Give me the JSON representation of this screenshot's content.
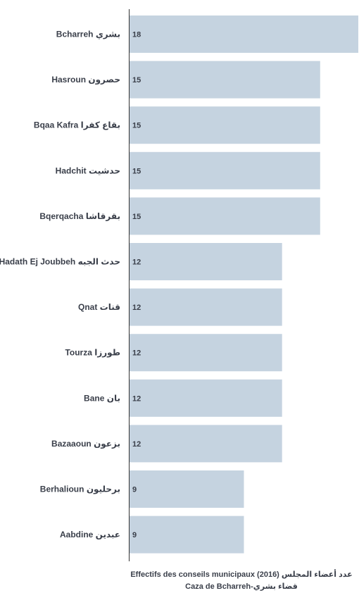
{
  "chart_data": {
    "type": "bar",
    "orientation": "horizontal",
    "categories": [
      "Bcharreh بشري",
      "Hasroun حصرون",
      "Bqaa Kafra بقاع كفرا",
      "Hadchit حدشيت",
      "Bqerqacha بقرقاشا",
      "Hadath Ej Joubbeh حدث الجبه",
      "Qnat قنات",
      "Tourza طورزا",
      "Bane بان",
      "Bazaaoun بزعون",
      "Berhalioun برحليون",
      "Aabdine عبدين"
    ],
    "values": [
      18,
      15,
      15,
      15,
      15,
      12,
      12,
      12,
      12,
      12,
      9,
      9
    ],
    "xlim": [
      0,
      18
    ],
    "grid": false,
    "bar_color": "#c5d3e0",
    "axis_color": "#333333",
    "caption_line1": "Effectifs des conseils municipaux (2016) عدد أعضاء المجلس",
    "caption_line2": "Caza de Bcharreh-قضاء بشري"
  }
}
